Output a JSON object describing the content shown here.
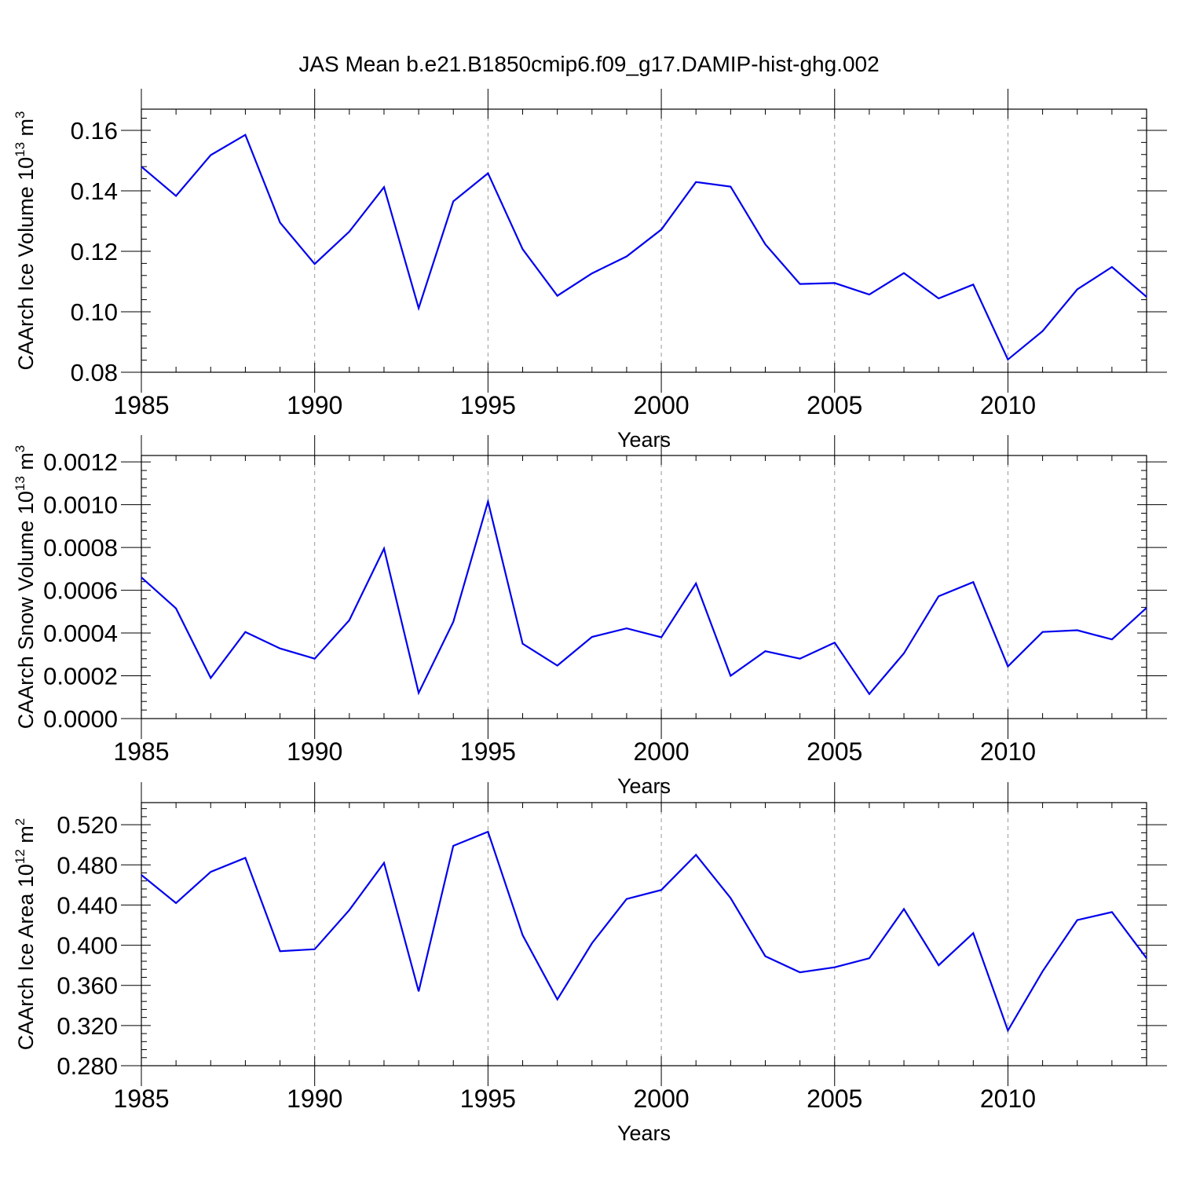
{
  "chart_data": [
    {
      "type": "line",
      "title": "JAS Mean b.e21.B1850cmip6.f09_g17.DAMIP-hist-ghg.002",
      "xlabel": "Years",
      "ylabel": "CAArch Ice Volume 10",
      "ylabel_exponent": "13",
      "ylabel_unit": "m",
      "ylabel_unit_exponent": "3",
      "x": [
        1985,
        1986,
        1987,
        1988,
        1989,
        1990,
        1991,
        1992,
        1993,
        1994,
        1995,
        1996,
        1997,
        1998,
        1999,
        2000,
        2001,
        2002,
        2003,
        2004,
        2005,
        2006,
        2007,
        2008,
        2009,
        2010,
        2011,
        2012,
        2013,
        2014
      ],
      "values": [
        0.148,
        0.1383,
        0.1518,
        0.1585,
        0.1295,
        0.1158,
        0.1265,
        0.1412,
        0.1012,
        0.1365,
        0.1458,
        0.1207,
        0.1053,
        0.1127,
        0.1183,
        0.1272,
        0.1429,
        0.1414,
        0.1223,
        0.1092,
        0.1095,
        0.1057,
        0.1128,
        0.1044,
        0.109,
        0.0842,
        0.0936,
        0.1074,
        0.1148,
        0.1049
      ],
      "xlim": [
        1985,
        2014
      ],
      "ylim": [
        0.08,
        0.167
      ],
      "xticks": [
        1985,
        1990,
        1995,
        2000,
        2005,
        2010
      ],
      "xtick_labels": [
        "1985",
        "1990",
        "1995",
        "2000",
        "2005",
        "2010"
      ],
      "yticks": [
        0.08,
        0.1,
        0.12,
        0.14,
        0.16
      ],
      "ytick_labels": [
        "0.08",
        "0.10",
        "0.12",
        "0.14",
        "0.16"
      ],
      "line_color": "#0000ee",
      "grid": "vertical dashed at major x ticks"
    },
    {
      "type": "line",
      "xlabel": "Years",
      "ylabel": "CAArch Snow Volume 10",
      "ylabel_exponent": "13",
      "ylabel_unit": "m",
      "ylabel_unit_exponent": "3",
      "x": [
        1985,
        1986,
        1987,
        1988,
        1989,
        1990,
        1991,
        1992,
        1993,
        1994,
        1995,
        1996,
        1997,
        1998,
        1999,
        2000,
        2001,
        2002,
        2003,
        2004,
        2005,
        2006,
        2007,
        2008,
        2009,
        2010,
        2011,
        2012,
        2013,
        2014
      ],
      "values": [
        0.00066,
        0.000515,
        0.00019,
        0.000405,
        0.000328,
        0.00028,
        0.00046,
        0.000795,
        0.00012,
        0.000452,
        0.001015,
        0.00035,
        0.000248,
        0.000382,
        0.000422,
        0.00038,
        0.000632,
        0.0002,
        0.000315,
        0.00028,
        0.000355,
        0.000115,
        0.000305,
        0.000572,
        0.000638,
        0.000244,
        0.000405,
        0.000413,
        0.00037,
        0.000518
      ],
      "xlim": [
        1985,
        2014
      ],
      "ylim": [
        0.0,
        0.00123
      ],
      "xticks": [
        1985,
        1990,
        1995,
        2000,
        2005,
        2010
      ],
      "xtick_labels": [
        "1985",
        "1990",
        "1995",
        "2000",
        "2005",
        "2010"
      ],
      "yticks": [
        0.0,
        0.0002,
        0.0004,
        0.0006,
        0.0008,
        0.001,
        0.0012
      ],
      "ytick_labels": [
        "0.0000",
        "0.0002",
        "0.0004",
        "0.0006",
        "0.0008",
        "0.0010",
        "0.0012"
      ],
      "line_color": "#0000ee",
      "grid": "vertical dashed at major x ticks"
    },
    {
      "type": "line",
      "xlabel": "Years",
      "ylabel": "CAArch Ice Area 10",
      "ylabel_exponent": "12",
      "ylabel_unit": "m",
      "ylabel_unit_exponent": "2",
      "x": [
        1985,
        1986,
        1987,
        1988,
        1989,
        1990,
        1991,
        1992,
        1993,
        1994,
        1995,
        1996,
        1997,
        1998,
        1999,
        2000,
        2001,
        2002,
        2003,
        2004,
        2005,
        2006,
        2007,
        2008,
        2009,
        2010,
        2011,
        2012,
        2013,
        2014
      ],
      "values": [
        0.47,
        0.442,
        0.473,
        0.487,
        0.394,
        0.396,
        0.435,
        0.482,
        0.354,
        0.499,
        0.513,
        0.41,
        0.346,
        0.402,
        0.446,
        0.455,
        0.49,
        0.447,
        0.389,
        0.373,
        0.378,
        0.387,
        0.436,
        0.38,
        0.412,
        0.315,
        0.374,
        0.425,
        0.433,
        0.387
      ],
      "xlim": [
        1985,
        2014
      ],
      "ylim": [
        0.28,
        0.542
      ],
      "xticks": [
        1985,
        1990,
        1995,
        2000,
        2005,
        2010
      ],
      "xtick_labels": [
        "1985",
        "1990",
        "1995",
        "2000",
        "2005",
        "2010"
      ],
      "yticks": [
        0.28,
        0.32,
        0.36,
        0.4,
        0.44,
        0.48,
        0.52
      ],
      "ytick_labels": [
        "0.280",
        "0.320",
        "0.360",
        "0.400",
        "0.440",
        "0.480",
        "0.520"
      ],
      "line_color": "#0000ee",
      "grid": "vertical dashed at major x ticks"
    }
  ]
}
